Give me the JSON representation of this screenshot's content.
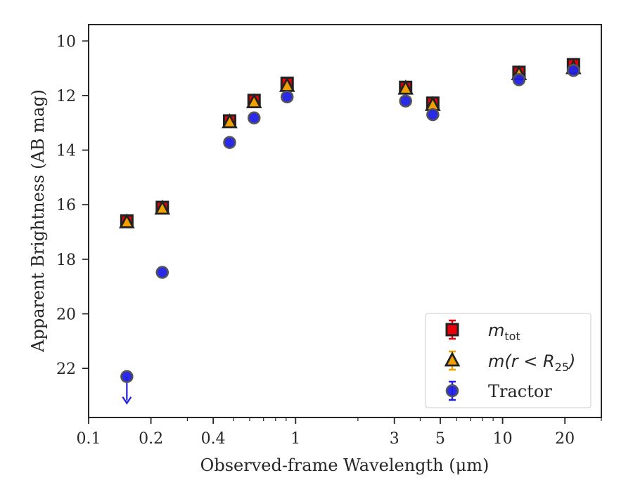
{
  "chart_data": {
    "type": "scatter",
    "xlabel": "Observed-frame Wavelength (μm)",
    "ylabel": "Apparent Brightness (AB mag)",
    "xscale": "log",
    "xlim": [
      0.1,
      30
    ],
    "ylim": [
      23.8,
      9.4
    ],
    "y_inverted": true,
    "xticks": [
      0.1,
      0.2,
      0.4,
      1,
      3,
      5,
      10,
      20
    ],
    "xtick_labels": [
      "0.1",
      "0.2",
      "0.4",
      "1",
      "3",
      "5",
      "10",
      "20"
    ],
    "yticks": [
      10,
      12,
      14,
      16,
      18,
      20,
      22
    ],
    "ytick_labels": [
      "10",
      "12",
      "14",
      "16",
      "18",
      "20",
      "22"
    ],
    "grid": false,
    "legend_position": "lower-right",
    "series": [
      {
        "name": "m_tot",
        "legend_main": "m",
        "legend_sub": "tot",
        "marker": "square",
        "color": "#e8000b",
        "edge_color": "#222222",
        "x": [
          0.153,
          0.227,
          0.48,
          0.63,
          0.91,
          3.4,
          4.6,
          12.0,
          22.0
        ],
        "y": [
          16.6,
          16.1,
          12.93,
          12.18,
          11.55,
          11.7,
          12.28,
          11.15,
          10.87
        ]
      },
      {
        "name": "m(r < R25)",
        "legend_main": "m(r < R",
        "legend_sub": "25",
        "legend_tail": ")",
        "marker": "triangle",
        "color": "#f0a000",
        "edge_color": "#222222",
        "x": [
          0.153,
          0.227,
          0.48,
          0.63,
          0.91,
          3.4,
          4.6,
          12.0,
          22.0
        ],
        "y": [
          16.65,
          16.15,
          12.98,
          12.25,
          11.65,
          11.75,
          12.35,
          11.22,
          11.0
        ]
      },
      {
        "name": "Tractor",
        "marker": "circle",
        "color": "#1f1fe6",
        "edge_color": "#555555",
        "x": [
          0.153,
          0.227,
          0.48,
          0.63,
          0.91,
          3.4,
          4.6,
          12.0,
          22.0
        ],
        "y": [
          22.3,
          18.48,
          13.72,
          12.82,
          12.05,
          12.2,
          12.7,
          11.42,
          11.08
        ],
        "upper_limits": [
          0.153
        ]
      }
    ]
  }
}
